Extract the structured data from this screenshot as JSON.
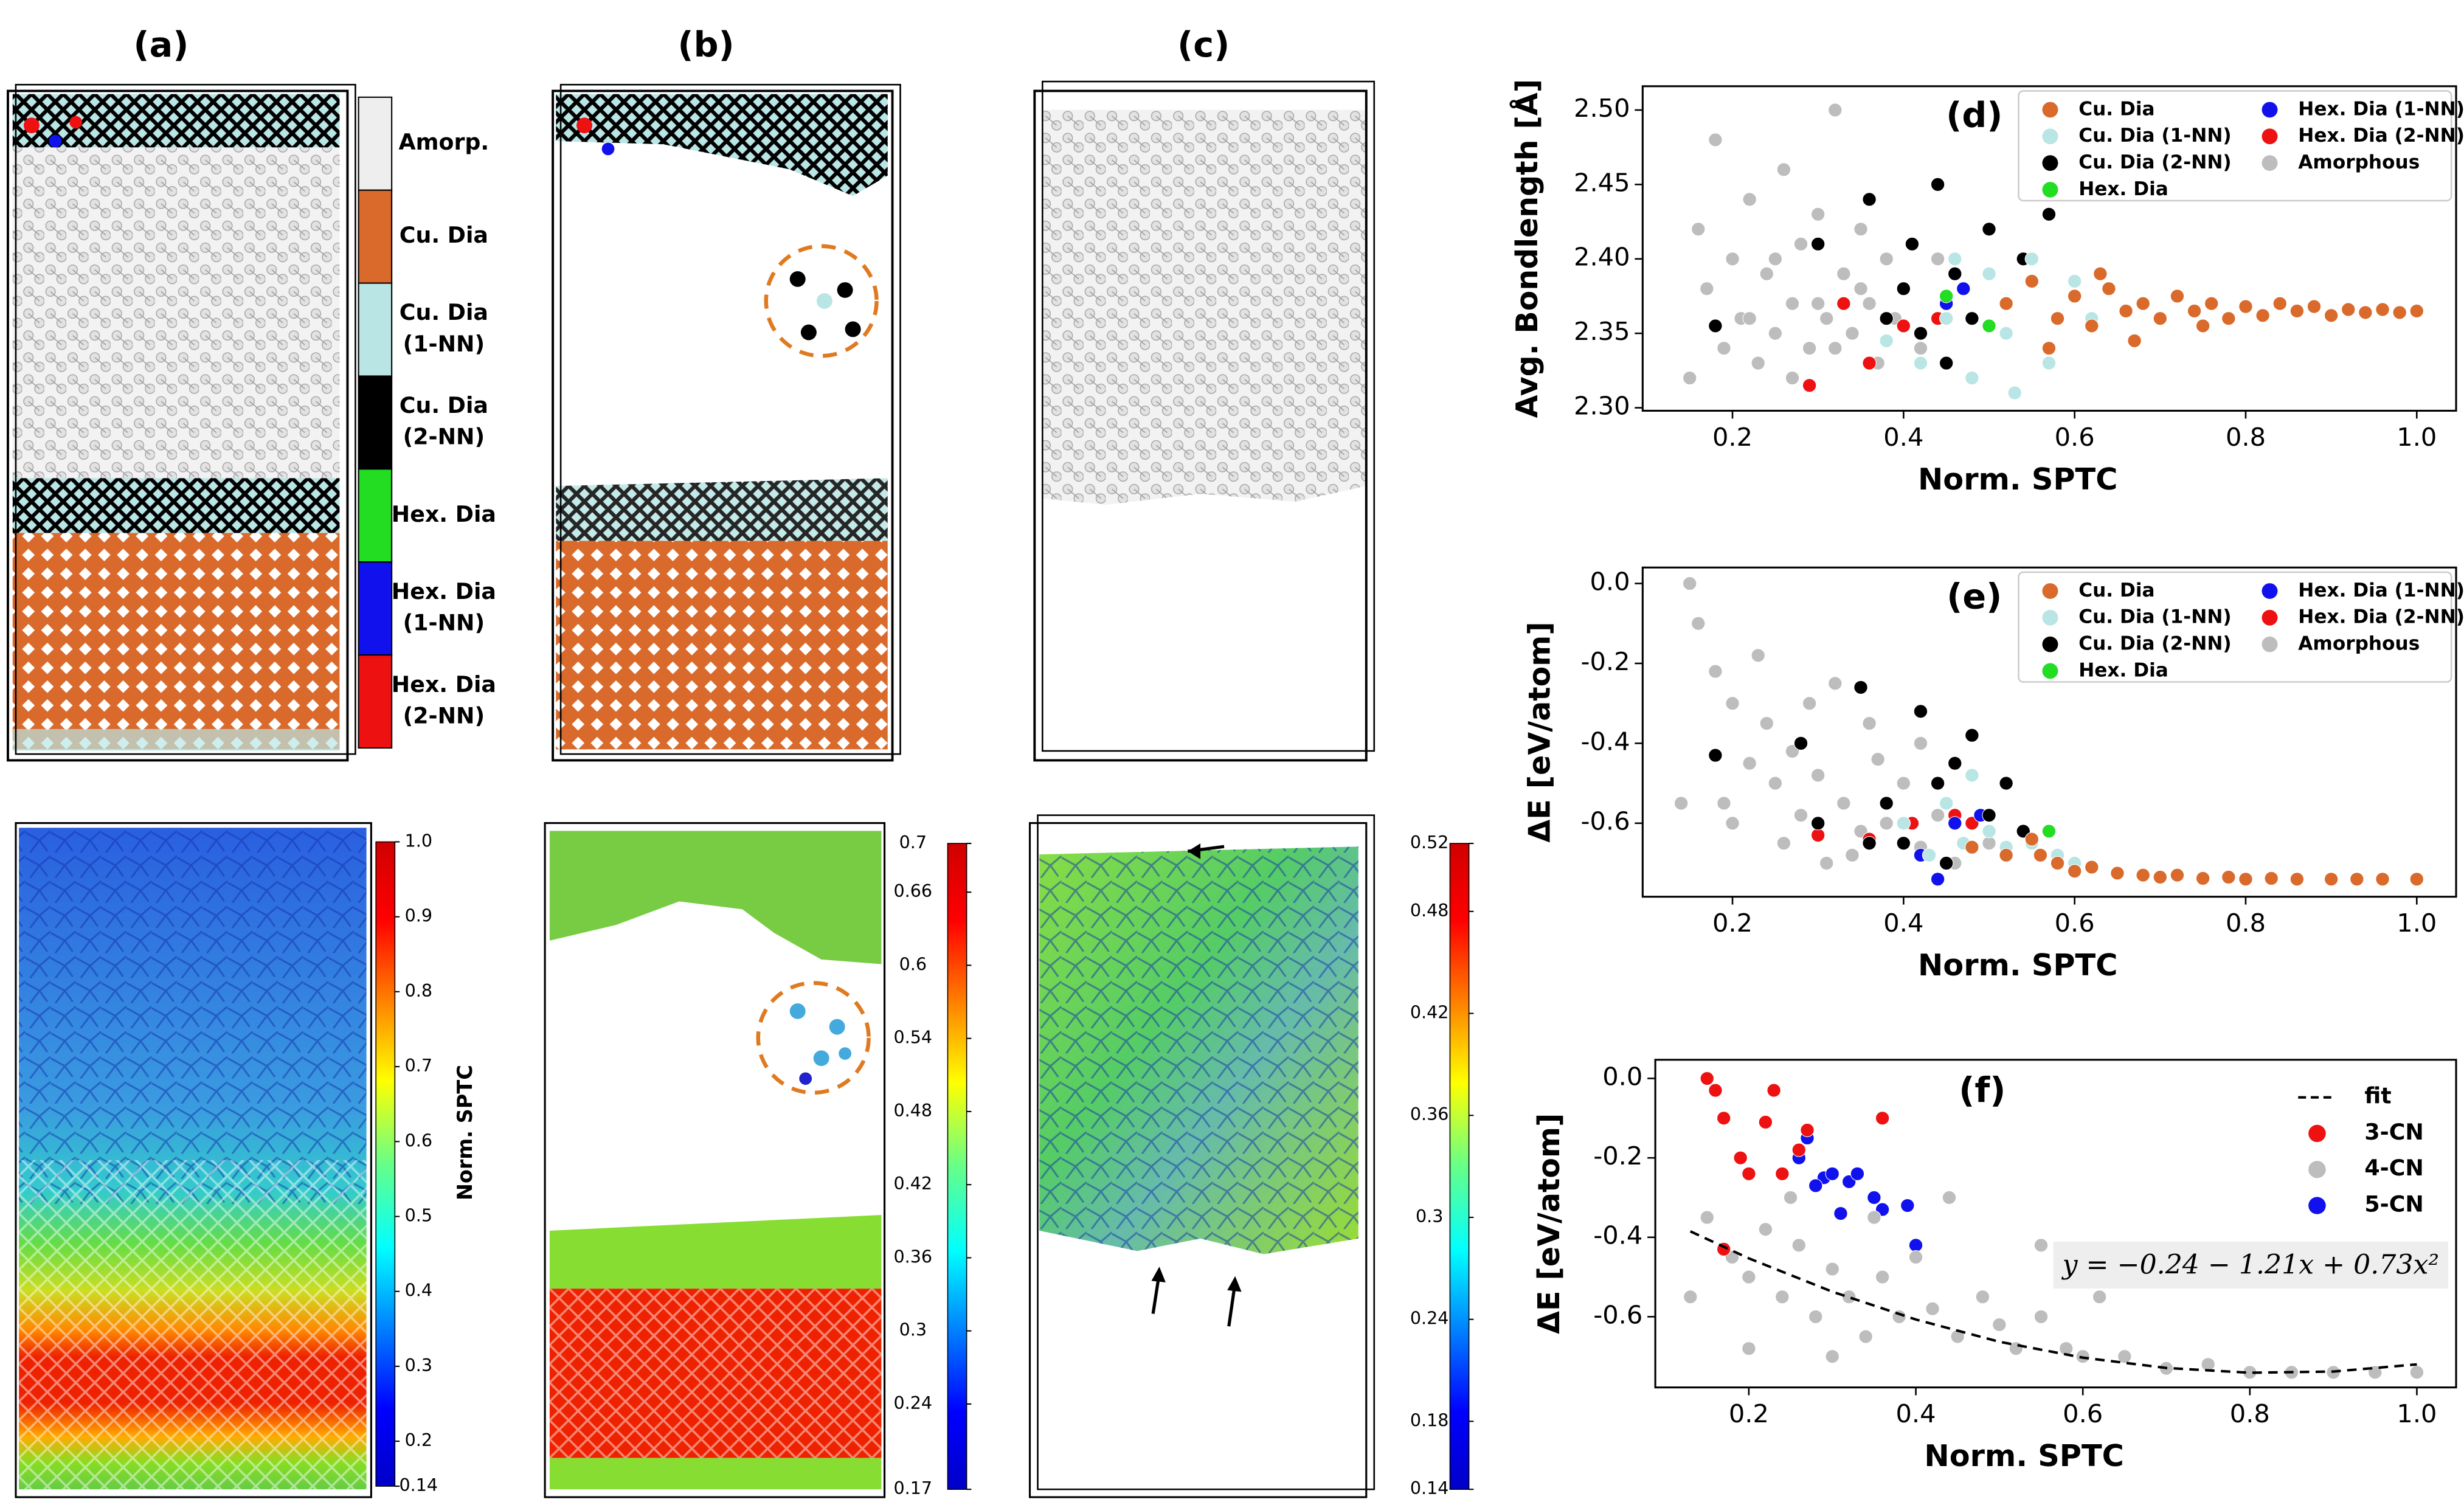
{
  "panel_labels": [
    "(a)",
    "(b)",
    "(c)"
  ],
  "structure_legend": [
    {
      "lines": [
        "Amorp."
      ],
      "color": "#eeeeee"
    },
    {
      "lines": [
        "Cu. Dia"
      ],
      "color": "#d96a2b"
    },
    {
      "lines": [
        "Cu. Dia",
        "(1-NN)"
      ],
      "color": "#b9e5e5"
    },
    {
      "lines": [
        "Cu. Dia",
        "(2-NN)"
      ],
      "color": "#000000"
    },
    {
      "lines": [
        "Hex. Dia"
      ],
      "color": "#22dd22"
    },
    {
      "lines": [
        "Hex. Dia",
        "(1-NN)"
      ],
      "color": "#1111ee"
    },
    {
      "lines": [
        "Hex. Dia",
        "(2-NN)"
      ],
      "color": "#ee1111"
    }
  ],
  "colorbars": [
    {
      "title": "Norm. SPTC",
      "lim": [
        0.14,
        1.0
      ],
      "ticks": [
        0.14,
        0.2,
        0.3,
        0.4,
        0.5,
        0.6,
        0.7,
        0.8,
        0.9,
        {
          "value": 1.0,
          "label": "1.0"
        }
      ]
    },
    {
      "lim": [
        0.17,
        0.7
      ],
      "ticks": [
        0.17,
        0.24,
        0.3,
        0.36,
        0.42,
        0.48,
        0.54,
        0.6,
        0.66,
        0.7
      ]
    },
    {
      "lim": [
        0.14,
        0.52
      ],
      "ticks": [
        0.14,
        0.18,
        0.24,
        0.3,
        0.36,
        0.42,
        0.48,
        0.52
      ]
    }
  ],
  "chart_data": [
    {
      "type": "scatter",
      "panel_label": "(d)",
      "xlabel": "Norm. SPTC",
      "ylabel": "Avg. Bondlength [Å]",
      "xlim": [
        0.095,
        1.046
      ],
      "ylim": [
        2.298,
        2.516
      ],
      "xticks": [
        0.2,
        0.4,
        0.6,
        0.8,
        {
          "value": 1.0,
          "label": "1.0"
        }
      ],
      "yticks": [
        {
          "value": 2.3,
          "label": "2.30"
        },
        2.35,
        {
          "value": 2.4,
          "label": "2.40"
        },
        2.45,
        {
          "value": 2.5,
          "label": "2.50"
        }
      ],
      "legend": "upper right",
      "legend_frame": true,
      "series": [
        {
          "name": "Cu. Dia",
          "color": "#d96a2b",
          "x": [
            0.52,
            0.55,
            0.58,
            0.6,
            0.62,
            0.64,
            0.66,
            0.68,
            0.7,
            0.72,
            0.74,
            0.76,
            0.78,
            0.8,
            0.82,
            0.84,
            0.86,
            0.88,
            0.9,
            0.92,
            0.94,
            0.96,
            0.98,
            1.0,
            0.57,
            0.63,
            0.67,
            0.75
          ],
          "values": [
            2.37,
            2.385,
            2.36,
            2.375,
            2.355,
            2.38,
            2.365,
            2.37,
            2.36,
            2.375,
            2.365,
            2.37,
            2.36,
            2.368,
            2.362,
            2.37,
            2.365,
            2.368,
            2.362,
            2.366,
            2.364,
            2.366,
            2.364,
            2.365,
            2.34,
            2.39,
            2.345,
            2.355
          ]
        },
        {
          "name": "Cu. Dia (1-NN)",
          "color": "#b9e5e5",
          "x": [
            0.42,
            0.45,
            0.48,
            0.5,
            0.52,
            0.55,
            0.57,
            0.6,
            0.62,
            0.46,
            0.38,
            0.53,
            0.58
          ],
          "values": [
            2.33,
            2.36,
            2.32,
            2.39,
            2.35,
            2.4,
            2.33,
            2.385,
            2.36,
            2.4,
            2.345,
            2.31,
            2.36
          ]
        },
        {
          "name": "Cu. Dia (2-NN)",
          "color": "#000000",
          "x": [
            0.18,
            0.3,
            0.36,
            0.38,
            0.4,
            0.42,
            0.44,
            0.46,
            0.48,
            0.5,
            0.52,
            0.54,
            0.45,
            0.41,
            0.57
          ],
          "values": [
            2.355,
            2.41,
            2.44,
            2.36,
            2.38,
            2.35,
            2.45,
            2.39,
            2.36,
            2.42,
            2.37,
            2.4,
            2.33,
            2.41,
            2.43
          ]
        },
        {
          "name": "Hex. Dia",
          "color": "#22dd22",
          "x": [
            0.5,
            0.45
          ],
          "values": [
            2.355,
            2.375
          ]
        },
        {
          "name": "Hex. Dia (1-NN)",
          "color": "#1111ee",
          "x": [
            0.45,
            0.47,
            0.42
          ],
          "values": [
            2.37,
            2.38,
            2.35
          ]
        },
        {
          "name": "Hex. Dia (2-NN)",
          "color": "#ee1111",
          "x": [
            0.29,
            0.33,
            0.36,
            0.4,
            0.44,
            0.48,
            0.5
          ],
          "values": [
            2.315,
            2.37,
            2.33,
            2.355,
            2.36,
            2.36,
            2.42
          ]
        },
        {
          "name": "Amorphous",
          "color": "#bdbdbd",
          "x": [
            0.15,
            0.16,
            0.17,
            0.18,
            0.19,
            0.2,
            0.21,
            0.22,
            0.23,
            0.24,
            0.25,
            0.26,
            0.27,
            0.28,
            0.29,
            0.3,
            0.31,
            0.32,
            0.33,
            0.34,
            0.35,
            0.36,
            0.37,
            0.38,
            0.39,
            0.4,
            0.42,
            0.44,
            0.27,
            0.22,
            0.3,
            0.35,
            0.25,
            0.32
          ],
          "values": [
            2.32,
            2.42,
            2.38,
            2.48,
            2.34,
            2.4,
            2.36,
            2.44,
            2.33,
            2.39,
            2.35,
            2.46,
            2.37,
            2.41,
            2.34,
            2.43,
            2.36,
            2.5,
            2.39,
            2.35,
            2.42,
            2.37,
            2.33,
            2.4,
            2.36,
            2.38,
            2.34,
            2.4,
            2.32,
            2.36,
            2.37,
            2.38,
            2.4,
            2.34
          ]
        }
      ]
    },
    {
      "type": "scatter",
      "panel_label": "(e)",
      "xlabel": "Norm. SPTC",
      "ylabel": "ΔE [eV/atom]",
      "xlim": [
        0.095,
        1.046
      ],
      "ylim": [
        -0.784,
        0.04
      ],
      "xticks": [
        0.2,
        0.4,
        0.6,
        0.8,
        {
          "value": 1.0,
          "label": "1.0"
        }
      ],
      "yticks": [
        {
          "value": 0.0,
          "label": "0.0"
        },
        -0.2,
        -0.4,
        -0.6
      ],
      "legend": "upper right",
      "legend_frame": true,
      "series": [
        {
          "name": "Cu. Dia",
          "color": "#d96a2b",
          "x": [
            0.48,
            0.52,
            0.55,
            0.58,
            0.6,
            0.62,
            0.65,
            0.68,
            0.7,
            0.72,
            0.75,
            0.78,
            0.8,
            0.83,
            0.86,
            0.9,
            0.93,
            0.96,
            1.0,
            0.56
          ],
          "values": [
            -0.66,
            -0.68,
            -0.64,
            -0.7,
            -0.72,
            -0.71,
            -0.725,
            -0.73,
            -0.735,
            -0.73,
            -0.738,
            -0.735,
            -0.74,
            -0.738,
            -0.74,
            -0.74,
            -0.74,
            -0.74,
            -0.74,
            -0.68
          ]
        },
        {
          "name": "Cu. Dia (1-NN)",
          "color": "#b9e5e5",
          "x": [
            0.4,
            0.45,
            0.48,
            0.5,
            0.52,
            0.55,
            0.58,
            0.6,
            0.47,
            0.43
          ],
          "values": [
            -0.6,
            -0.55,
            -0.48,
            -0.62,
            -0.66,
            -0.65,
            -0.68,
            -0.7,
            -0.65,
            -0.68
          ]
        },
        {
          "name": "Cu. Dia (2-NN)",
          "color": "#000000",
          "x": [
            0.18,
            0.28,
            0.3,
            0.35,
            0.38,
            0.4,
            0.42,
            0.44,
            0.46,
            0.48,
            0.5,
            0.52,
            0.54,
            0.36,
            0.45
          ],
          "values": [
            -0.43,
            -0.4,
            -0.6,
            -0.26,
            -0.55,
            -0.65,
            -0.32,
            -0.5,
            -0.45,
            -0.38,
            -0.58,
            -0.5,
            -0.62,
            -0.65,
            -0.7
          ]
        },
        {
          "name": "Hex. Dia",
          "color": "#22dd22",
          "x": [
            0.57
          ],
          "values": [
            -0.62
          ]
        },
        {
          "name": "Hex. Dia (1-NN)",
          "color": "#1111ee",
          "x": [
            0.44,
            0.46,
            0.49,
            0.42
          ],
          "values": [
            -0.74,
            -0.6,
            -0.58,
            -0.68
          ]
        },
        {
          "name": "Hex. Dia (2-NN)",
          "color": "#ee1111",
          "x": [
            0.3,
            0.36,
            0.41,
            0.46,
            0.48
          ],
          "values": [
            -0.63,
            -0.64,
            -0.6,
            -0.58,
            -0.6
          ]
        },
        {
          "name": "Amorphous",
          "color": "#bdbdbd",
          "x": [
            0.14,
            0.15,
            0.16,
            0.18,
            0.2,
            0.22,
            0.24,
            0.25,
            0.27,
            0.28,
            0.3,
            0.32,
            0.33,
            0.35,
            0.37,
            0.38,
            0.4,
            0.42,
            0.44,
            0.46,
            0.5,
            0.2,
            0.26,
            0.31,
            0.23,
            0.36,
            0.29,
            0.42,
            0.19,
            0.34
          ],
          "values": [
            -0.55,
            0.0,
            -0.1,
            -0.22,
            -0.3,
            -0.45,
            -0.35,
            -0.5,
            -0.42,
            -0.58,
            -0.48,
            -0.25,
            -0.55,
            -0.62,
            -0.44,
            -0.6,
            -0.5,
            -0.66,
            -0.58,
            -0.7,
            -0.65,
            -0.6,
            -0.65,
            -0.7,
            -0.18,
            -0.35,
            -0.3,
            -0.4,
            -0.55,
            -0.68
          ]
        }
      ]
    },
    {
      "type": "scatter",
      "panel_label": "(f)",
      "xlabel": "Norm. SPTC",
      "ylabel": "ΔE [eV/atom]",
      "xlim": [
        0.088,
        1.047
      ],
      "ylim": [
        -0.778,
        0.047
      ],
      "xticks": [
        0.2,
        0.4,
        0.6,
        0.8,
        {
          "value": 1.0,
          "label": "1.0"
        }
      ],
      "yticks": [
        {
          "value": 0.0,
          "label": "0.0"
        },
        -0.2,
        -0.4,
        -0.6
      ],
      "legend": "upper right",
      "legend_frame": false,
      "annotation": "y = −0.24 − 1.21x + 0.73x²",
      "series": [
        {
          "name": "fit",
          "color": "#000000",
          "line": "dashed",
          "x": [
            0.13,
            0.2,
            0.3,
            0.4,
            0.5,
            0.6,
            0.7,
            0.8,
            0.9,
            1.0
          ],
          "values": [
            -0.385,
            -0.453,
            -0.537,
            -0.607,
            -0.663,
            -0.703,
            -0.729,
            -0.741,
            -0.738,
            -0.72
          ]
        },
        {
          "name": "3-CN",
          "color": "#ee1111",
          "x": [
            0.15,
            0.16,
            0.17,
            0.19,
            0.2,
            0.22,
            0.23,
            0.24,
            0.26,
            0.27,
            0.36,
            0.17
          ],
          "values": [
            0.0,
            -0.03,
            -0.1,
            -0.2,
            -0.24,
            -0.11,
            -0.03,
            -0.24,
            -0.18,
            -0.13,
            -0.1,
            -0.43
          ]
        },
        {
          "name": "4-CN",
          "color": "#bdbdbd",
          "x": [
            0.13,
            0.15,
            0.18,
            0.2,
            0.22,
            0.24,
            0.26,
            0.28,
            0.3,
            0.32,
            0.34,
            0.36,
            0.38,
            0.4,
            0.42,
            0.45,
            0.48,
            0.5,
            0.52,
            0.55,
            0.58,
            0.6,
            0.65,
            0.7,
            0.75,
            0.8,
            0.85,
            0.9,
            0.95,
            1.0,
            0.25,
            0.35,
            0.44,
            0.55,
            0.62,
            0.2,
            0.3
          ],
          "values": [
            -0.55,
            -0.35,
            -0.45,
            -0.5,
            -0.38,
            -0.55,
            -0.42,
            -0.6,
            -0.48,
            -0.55,
            -0.65,
            -0.5,
            -0.6,
            -0.45,
            -0.58,
            -0.65,
            -0.55,
            -0.62,
            -0.68,
            -0.6,
            -0.68,
            -0.7,
            -0.7,
            -0.73,
            -0.72,
            -0.74,
            -0.74,
            -0.74,
            -0.74,
            -0.74,
            -0.3,
            -0.35,
            -0.3,
            -0.42,
            -0.55,
            -0.68,
            -0.7
          ]
        },
        {
          "name": "5-CN",
          "color": "#1111ee",
          "x": [
            0.26,
            0.27,
            0.29,
            0.3,
            0.32,
            0.33,
            0.35,
            0.36,
            0.39,
            0.4,
            0.28,
            0.31
          ],
          "values": [
            -0.2,
            -0.15,
            -0.25,
            -0.24,
            -0.26,
            -0.24,
            -0.3,
            -0.33,
            -0.32,
            -0.42,
            -0.27,
            -0.34
          ]
        }
      ]
    }
  ]
}
